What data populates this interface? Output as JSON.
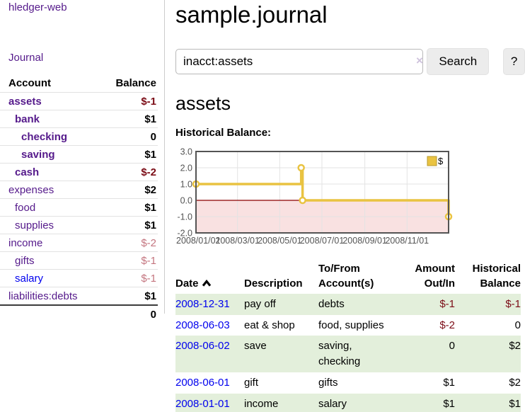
{
  "app": {
    "title": "hledger-web"
  },
  "sidebar": {
    "journal_link": "Journal",
    "accounts_header": {
      "account": "Account",
      "balance": "Balance"
    },
    "accounts": [
      {
        "name": "assets",
        "depth": 1,
        "bold": true,
        "link_color": "purple",
        "balance": "$-1",
        "balance_style": "neg-strong",
        "balance_bold": true
      },
      {
        "name": "bank",
        "depth": 2,
        "bold": true,
        "link_color": "purple",
        "balance": "$1",
        "balance_style": "pos",
        "balance_bold": true
      },
      {
        "name": "checking",
        "depth": 3,
        "bold": true,
        "link_color": "purple",
        "balance": "0",
        "balance_style": "pos",
        "balance_bold": true
      },
      {
        "name": "saving",
        "depth": 3,
        "bold": true,
        "link_color": "purple",
        "balance": "$1",
        "balance_style": "pos",
        "balance_bold": true
      },
      {
        "name": "cash",
        "depth": 2,
        "bold": true,
        "link_color": "purple",
        "balance": "$-2",
        "balance_style": "neg-strong",
        "balance_bold": true
      },
      {
        "name": "expenses",
        "depth": 1,
        "bold": false,
        "link_color": "purple",
        "balance": "$2",
        "balance_style": "pos",
        "balance_bold": true
      },
      {
        "name": "food",
        "depth": 2,
        "bold": false,
        "link_color": "purple",
        "balance": "$1",
        "balance_style": "pos",
        "balance_bold": true
      },
      {
        "name": "supplies",
        "depth": 2,
        "bold": false,
        "link_color": "purple",
        "balance": "$1",
        "balance_style": "pos",
        "balance_bold": true
      },
      {
        "name": "income",
        "depth": 1,
        "bold": false,
        "link_color": "purple",
        "balance": "$-2",
        "balance_style": "neg-muted",
        "balance_bold": false
      },
      {
        "name": "gifts",
        "depth": 2,
        "bold": false,
        "link_color": "purple",
        "balance": "$-1",
        "balance_style": "neg-muted",
        "balance_bold": false
      },
      {
        "name": "salary",
        "depth": 2,
        "bold": false,
        "link_color": "blue",
        "balance": "$-1",
        "balance_style": "neg-muted",
        "balance_bold": false
      },
      {
        "name": "liabilities:debts",
        "depth": 1,
        "bold": false,
        "link_color": "purple",
        "balance": "$1",
        "balance_style": "pos",
        "balance_bold": true
      }
    ],
    "total": "0"
  },
  "header": {
    "title": "sample.journal"
  },
  "search": {
    "value": "inacct:assets",
    "clear_icon": "×",
    "button_label": "Search",
    "help_label": "?"
  },
  "account_page": {
    "title": "assets",
    "chart_label": "Historical Balance:"
  },
  "chart_data": {
    "type": "line",
    "step": true,
    "title": "Historical Balance",
    "series": [
      {
        "name": "$",
        "color": "#e9c341",
        "points": [
          [
            "2008-01-01",
            1
          ],
          [
            "2008-06-01",
            2
          ],
          [
            "2008-06-03",
            0
          ],
          [
            "2008-12-31",
            -1
          ]
        ]
      }
    ],
    "xlim": [
      "2008-01-01",
      "2008-12-31"
    ],
    "ylim": [
      -2,
      3
    ],
    "y_ticks": [
      "3.0",
      "2.0",
      "1.0",
      "0.0",
      "-1.0",
      "-2.0"
    ],
    "y_tick_values": [
      3,
      2,
      1,
      0,
      -1,
      -2
    ],
    "x_ticks": [
      "2008/01/01",
      "2008/03/01",
      "2008/05/01",
      "2008/07/01",
      "2008/09/01",
      "2008/11/01"
    ],
    "x_tick_dates": [
      "2008-01-01",
      "2008-03-01",
      "2008-05-01",
      "2008-07-01",
      "2008-09-01",
      "2008-11-01"
    ],
    "grid": true,
    "legend": {
      "label": "$",
      "position": "top-right"
    },
    "zero_line_color": "#8b0000",
    "negative_region_fill": "rgba(220,90,90,0.18)",
    "grid_color": "#e3e3e3",
    "border_color": "#545454",
    "tick_label_color": "#545454"
  },
  "transactions": {
    "headers": {
      "date": "Date",
      "description": "Description",
      "accounts": "To/From Account(s)",
      "amount": "Amount Out/In",
      "balance": "Historical Balance"
    },
    "rows": [
      {
        "date": "2008-12-31",
        "description": "pay off",
        "accounts": "debts",
        "amount": "$-1",
        "balance": "$-1"
      },
      {
        "date": "2008-06-03",
        "description": "eat & shop",
        "accounts": "food, supplies",
        "amount": "$-2",
        "balance": "0"
      },
      {
        "date": "2008-06-02",
        "description": "save",
        "accounts": "saving, checking",
        "amount": "0",
        "balance": "$2"
      },
      {
        "date": "2008-06-01",
        "description": "gift",
        "accounts": "gifts",
        "amount": "$1",
        "balance": "$2"
      },
      {
        "date": "2008-01-01",
        "description": "income",
        "accounts": "salary",
        "amount": "$1",
        "balance": "$1"
      }
    ]
  },
  "colors": {
    "visited_link_purple": "#551a8b",
    "unvisited_link_blue": "#0101ee",
    "negative_strong_red": "#7b0c16",
    "negative_muted_rose": "#c4757f",
    "row_stripe_green": "#e3efdb",
    "chart_line_gold": "#e9c341",
    "button_gray": "#ececec"
  }
}
